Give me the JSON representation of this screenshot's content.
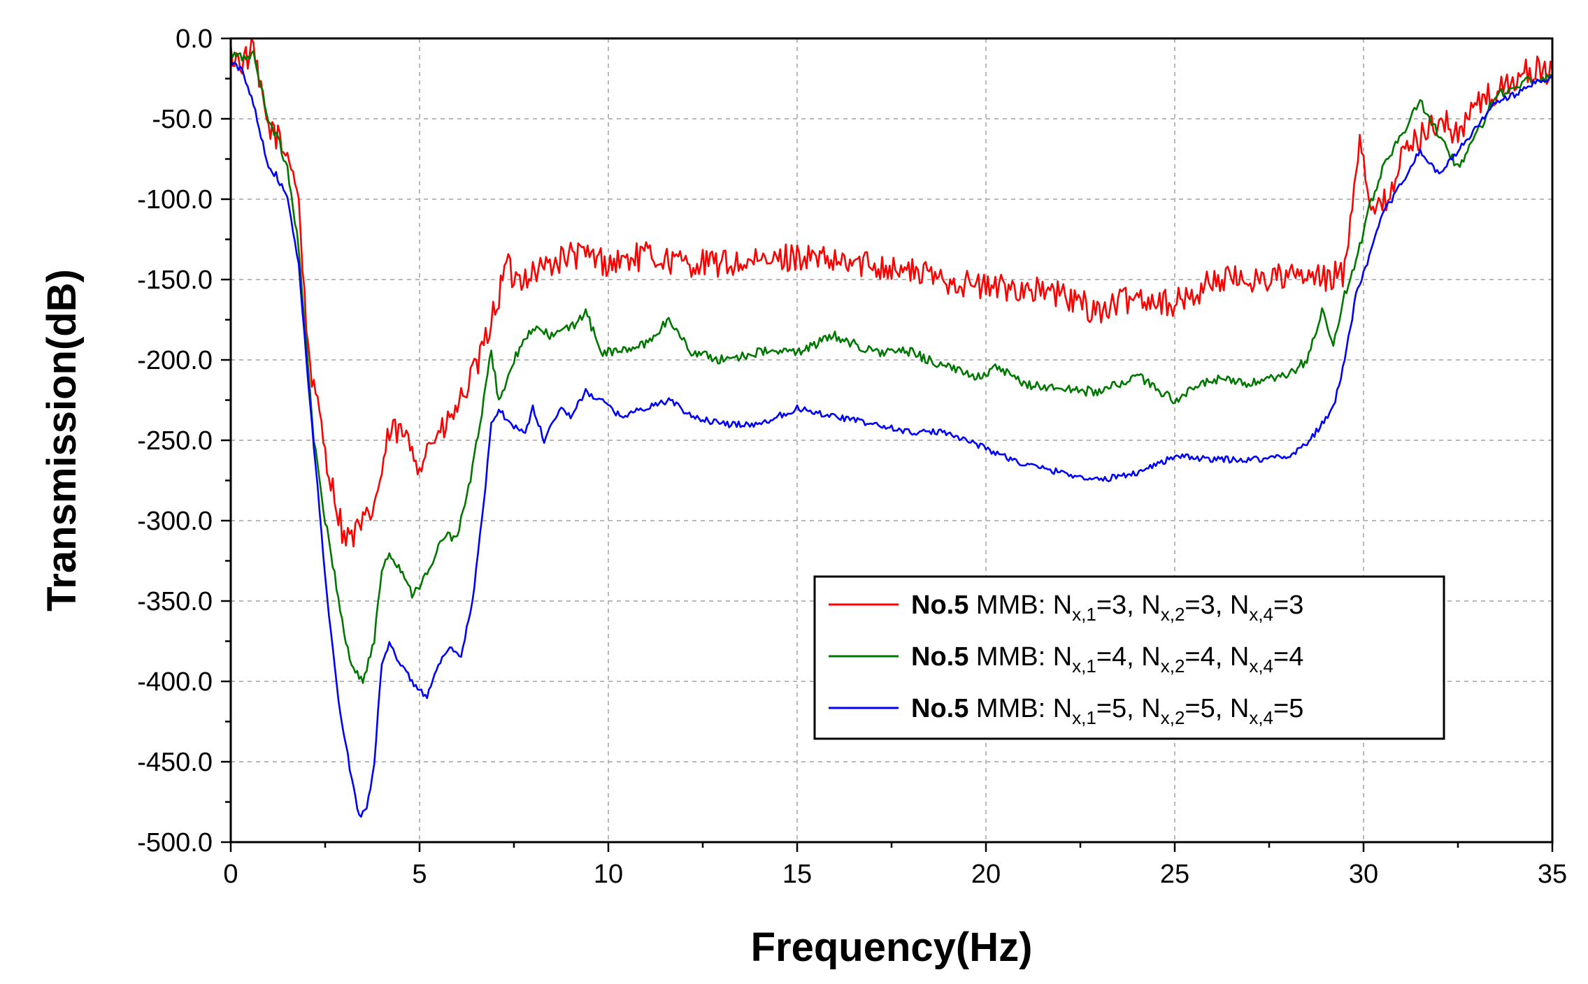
{
  "chart_data": {
    "type": "line",
    "xlabel": "Frequency(Hz)",
    "ylabel": "Transmission(dB)",
    "xlim": [
      0,
      35
    ],
    "ylim": [
      -500,
      0
    ],
    "xticks": [
      0,
      5,
      10,
      15,
      20,
      25,
      30,
      35
    ],
    "yticks": [
      0,
      -50,
      -100,
      -150,
      -200,
      -250,
      -300,
      -350,
      -400,
      -450,
      -500
    ],
    "ytick_labels": [
      "0.0",
      "-50.0",
      "-100.0",
      "-150.0",
      "-200.0",
      "-250.0",
      "-300.0",
      "-350.0",
      "-400.0",
      "-450.0",
      "-500.0"
    ],
    "xtick_labels": [
      "0",
      "5",
      "10",
      "15",
      "20",
      "25",
      "30",
      "35"
    ],
    "grid": true,
    "legend_position": "lower-right",
    "series": [
      {
        "name": "No.5 MMB: Nx,1=3, Nx,2=3, Nx,4=3",
        "legend": {
          "bold": "No.5",
          "rest": "MMB: ",
          "n": [
            "3",
            "3",
            "3"
          ]
        },
        "color": "#ff0000",
        "noise": 9,
        "x": [
          0,
          0.3,
          0.6,
          0.8,
          1.0,
          1.2,
          1.4,
          1.6,
          1.8,
          2.0,
          2.2,
          2.4,
          2.6,
          2.8,
          3.0,
          3.2,
          3.4,
          3.6,
          3.8,
          4.0,
          4.2,
          4.5,
          4.8,
          5.0,
          5.3,
          5.6,
          6.0,
          6.3,
          6.6,
          6.9,
          7.1,
          7.3,
          7.5,
          8.0,
          8.5,
          9.0,
          9.5,
          10.0,
          11.0,
          12.0,
          13.0,
          14.0,
          15.0,
          16.0,
          17.0,
          18.0,
          19.0,
          20.0,
          21.0,
          22.0,
          23.0,
          24.0,
          25.0,
          25.5,
          26.0,
          27.0,
          28.0,
          29.0,
          29.5,
          29.7,
          29.9,
          30.1,
          30.3,
          30.6,
          31.0,
          31.5,
          32.0,
          32.5,
          33.0,
          33.5,
          34.0,
          34.5,
          35.0
        ],
        "y": [
          -10,
          -15,
          -8,
          -35,
          -55,
          -60,
          -70,
          -75,
          -100,
          -180,
          -220,
          -240,
          -270,
          -290,
          -310,
          -310,
          -305,
          -300,
          -290,
          -270,
          -245,
          -245,
          -255,
          -265,
          -250,
          -245,
          -230,
          -215,
          -200,
          -175,
          -160,
          -140,
          -150,
          -145,
          -140,
          -135,
          -135,
          -140,
          -135,
          -140,
          -140,
          -140,
          -135,
          -140,
          -140,
          -145,
          -150,
          -155,
          -155,
          -160,
          -170,
          -160,
          -165,
          -160,
          -150,
          -150,
          -148,
          -150,
          -145,
          -100,
          -60,
          -90,
          -110,
          -100,
          -75,
          -60,
          -50,
          -60,
          -40,
          -35,
          -25,
          -20,
          -20
        ]
      },
      {
        "name": "No.5 MMB: Nx,1=4, Nx,2=4, Nx,4=4",
        "legend": {
          "bold": "No.5",
          "rest": "MMB: ",
          "n": [
            "4",
            "4",
            "4"
          ]
        },
        "color": "#007700",
        "noise": 3,
        "x": [
          0,
          0.3,
          0.6,
          0.8,
          1.0,
          1.2,
          1.5,
          1.8,
          2.0,
          2.2,
          2.5,
          2.8,
          3.0,
          3.2,
          3.5,
          3.8,
          4.0,
          4.2,
          4.5,
          4.8,
          5.0,
          5.3,
          5.6,
          6.0,
          6.3,
          6.6,
          6.9,
          7.1,
          7.3,
          7.5,
          8.0,
          8.5,
          9.0,
          9.4,
          9.8,
          10.3,
          11.0,
          11.6,
          12.2,
          13.0,
          14.0,
          15.0,
          16.0,
          17.0,
          18.0,
          19.0,
          19.8,
          20.3,
          21.0,
          22.0,
          23.0,
          24.0,
          25.0,
          26.0,
          27.0,
          28.0,
          28.5,
          28.9,
          29.2,
          29.5,
          29.8,
          30.1,
          30.5,
          31.0,
          31.5,
          32.0,
          32.5,
          33.0,
          33.5,
          34.0,
          34.5,
          35.0
        ],
        "y": [
          -10,
          -12,
          -10,
          -30,
          -50,
          -60,
          -80,
          -130,
          -190,
          -250,
          -300,
          -340,
          -370,
          -390,
          -400,
          -375,
          -330,
          -320,
          -330,
          -345,
          -340,
          -330,
          -310,
          -310,
          -280,
          -240,
          -195,
          -225,
          -215,
          -200,
          -180,
          -185,
          -180,
          -170,
          -195,
          -195,
          -190,
          -175,
          -195,
          -200,
          -195,
          -195,
          -185,
          -195,
          -195,
          -205,
          -210,
          -205,
          -215,
          -218,
          -220,
          -210,
          -225,
          -212,
          -215,
          -210,
          -200,
          -170,
          -190,
          -160,
          -140,
          -110,
          -80,
          -60,
          -40,
          -60,
          -80,
          -60,
          -35,
          -30,
          -25,
          -25
        ]
      },
      {
        "name": "No.5 MMB: Nx,1=5, Nx,2=5, Nx,4=5",
        "legend": {
          "bold": "No.5",
          "rest": "MMB: ",
          "n": [
            "5",
            "5",
            "5"
          ]
        },
        "color": "#0000ff",
        "noise": 2,
        "x": [
          0,
          0.3,
          0.6,
          0.8,
          1.0,
          1.2,
          1.5,
          1.8,
          2.0,
          2.3,
          2.6,
          2.9,
          3.2,
          3.4,
          3.6,
          3.8,
          4.0,
          4.2,
          4.5,
          4.8,
          5.0,
          5.2,
          5.5,
          5.8,
          6.1,
          6.4,
          6.7,
          6.9,
          7.1,
          7.4,
          7.8,
          8.0,
          8.3,
          8.7,
          9.0,
          9.4,
          9.8,
          10.3,
          11.0,
          11.6,
          12.2,
          13.0,
          14.0,
          15.0,
          16.0,
          17.0,
          18.0,
          19.0,
          20.0,
          21.0,
          22.0,
          23.0,
          24.0,
          25.0,
          26.0,
          27.0,
          28.0,
          28.5,
          28.9,
          29.2,
          29.5,
          29.8,
          30.1,
          30.5,
          31.0,
          31.5,
          32.0,
          32.5,
          33.0,
          33.5,
          34.0,
          34.5,
          35.0
        ],
        "y": [
          -15,
          -20,
          -40,
          -60,
          -80,
          -85,
          -100,
          -140,
          -200,
          -280,
          -360,
          -420,
          -460,
          -483,
          -480,
          -450,
          -390,
          -375,
          -390,
          -400,
          -405,
          -410,
          -390,
          -380,
          -385,
          -350,
          -290,
          -240,
          -230,
          -240,
          -245,
          -230,
          -250,
          -230,
          -235,
          -220,
          -225,
          -235,
          -230,
          -225,
          -235,
          -240,
          -240,
          -230,
          -235,
          -240,
          -245,
          -245,
          -255,
          -265,
          -270,
          -275,
          -270,
          -260,
          -262,
          -262,
          -260,
          -252,
          -240,
          -230,
          -200,
          -160,
          -140,
          -110,
          -90,
          -70,
          -85,
          -70,
          -55,
          -40,
          -35,
          -28,
          -25
        ]
      }
    ]
  }
}
